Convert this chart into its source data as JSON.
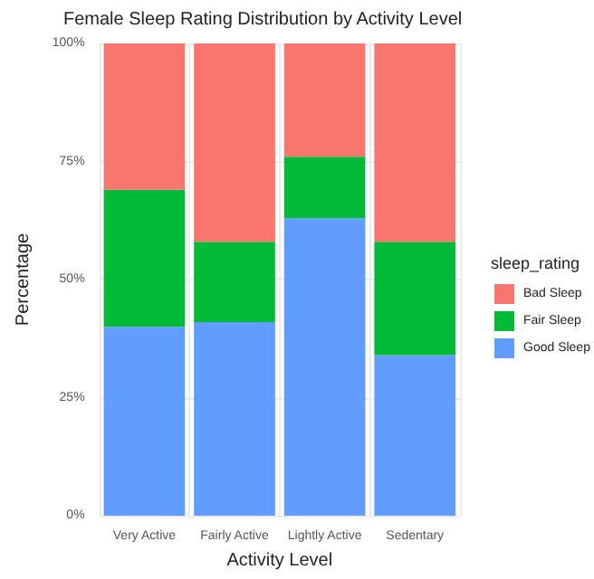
{
  "chart_data": {
    "type": "bar",
    "stacked": true,
    "title": "Female Sleep Rating Distribution by Activity Level",
    "xlabel": "Activity Level",
    "ylabel": "Percentage",
    "legend_title": "sleep_rating",
    "legend": "right",
    "grid": true,
    "categories": [
      "Very Active",
      "Fairly Active",
      "Lightly Active",
      "Sedentary"
    ],
    "series": [
      {
        "name": "Good Sleep",
        "color": "#619cff",
        "values": [
          40,
          41,
          63,
          34
        ]
      },
      {
        "name": "Fair Sleep",
        "color": "#00ba38",
        "values": [
          29,
          17,
          13,
          24
        ]
      },
      {
        "name": "Bad Sleep",
        "color": "#f8766d",
        "values": [
          31,
          42,
          24,
          42
        ]
      }
    ],
    "ylim": [
      0,
      100
    ],
    "yticks": [
      {
        "value": 0,
        "label": "0%"
      },
      {
        "value": 25,
        "label": "25%"
      },
      {
        "value": 50,
        "label": "50%"
      },
      {
        "value": 75,
        "label": "75%"
      },
      {
        "value": 100,
        "label": "100%"
      }
    ]
  }
}
